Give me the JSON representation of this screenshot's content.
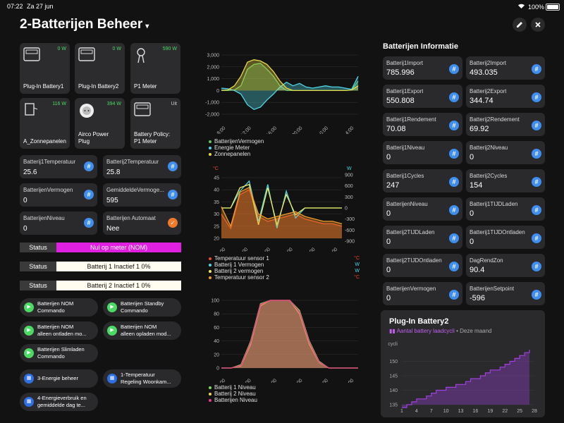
{
  "status_bar": {
    "time": "07:22",
    "date": "Za 27 jun",
    "battery_pct": "100%"
  },
  "header": {
    "title": "2-Batterijen Beheer",
    "caret": "▾",
    "edit_icon": "pencil-icon",
    "close_icon": "close-icon"
  },
  "tiles": [
    {
      "label": "Plug-In Battery1",
      "power": "0 W",
      "icon": "battery-device-icon"
    },
    {
      "label": "Plug-In Battery2",
      "power": "0 W",
      "icon": "battery-device-icon"
    },
    {
      "label": "P1 Meter",
      "power": "590 W",
      "icon": "meter-icon"
    },
    {
      "label": "A_Zonnepanelen",
      "power": "116 W",
      "icon": "solar-panel-icon"
    },
    {
      "label": "Airco Power\nPlug",
      "power": "394 W",
      "icon": "plug-icon"
    },
    {
      "label": "Battery Policy:\nP1 Meter",
      "power": "Uit",
      "icon": "battery-device-icon"
    }
  ],
  "left_cards": [
    {
      "key": "Batterij1Temperatuur",
      "value": "25.6"
    },
    {
      "key": "Batterij2Temperatuur",
      "value": "25.8"
    },
    {
      "key": "BatterijenVermogen",
      "value": "0"
    },
    {
      "key": "GemiddeldeVermoge...",
      "value": "595"
    },
    {
      "key": "BatterijenNiveau",
      "value": "0"
    },
    {
      "key": "Batterijen Automaat",
      "value": "Nee"
    }
  ],
  "status_rows": [
    {
      "label": "Status",
      "value": "Nul op meter (NOM)",
      "color": "#e020e0"
    },
    {
      "label": "Status",
      "value": "Batterij 1 Inactief 1 0%",
      "color": "#fffdf0"
    },
    {
      "label": "Status",
      "value": "Batterij 2 Inactief 1 0%",
      "color": "#fffdf0"
    }
  ],
  "commands": [
    {
      "text": "Batterijen NOM\nCommando"
    },
    {
      "text": "Batterijen Standby\nCommando"
    },
    {
      "text": "Batterijen NOM\nalleen ontladen mo..."
    },
    {
      "text": "Batterijen NOM\nalleen opladen mod..."
    },
    {
      "text": "Batterijen Slimladen\nCommando"
    }
  ],
  "nav_buttons": [
    {
      "text": "3-Energie beheer"
    },
    {
      "text": "1-Temperatuur\nRegeling Woonkam..."
    },
    {
      "text": "4-Energieverbruik en\ngemiddelde dag te..."
    }
  ],
  "right_section": {
    "title": "Batterijen Informatie",
    "cards": [
      {
        "key": "Batterij1Import",
        "value": "785.996"
      },
      {
        "key": "Batterij2Import",
        "value": "493.035"
      },
      {
        "key": "Batterij1Export",
        "value": "550.808"
      },
      {
        "key": "Batterij2Export",
        "value": "344.74"
      },
      {
        "key": "Batterij1Rendement",
        "value": "70.08"
      },
      {
        "key": "Batterij2Rendement",
        "value": "69.92"
      },
      {
        "key": "Batterij1Niveau",
        "value": "0"
      },
      {
        "key": "Batterij2Niveau",
        "value": "0"
      },
      {
        "key": "Batterij1Cycles",
        "value": "247"
      },
      {
        "key": "Batterij2Cycles",
        "value": "154"
      },
      {
        "key": "BatterijenNiveau",
        "value": "0"
      },
      {
        "key": "Batterij1TIJDLaden",
        "value": "0"
      },
      {
        "key": "Batterij2TIJDLaden",
        "value": "0"
      },
      {
        "key": "Batterij1TIJDOntladen",
        "value": "0"
      },
      {
        "key": "Batterij2TIJDOntladen",
        "value": "0"
      },
      {
        "key": "DagRendZon",
        "value": "90.4"
      },
      {
        "key": "BatterijenVermogen",
        "value": "0"
      },
      {
        "key": "BatterijenSetpoint",
        "value": "-596"
      }
    ]
  },
  "chart_data": [
    {
      "type": "area",
      "x_ticks": [
        "8:00",
        "12:00",
        "16:00",
        "20:00",
        "0:00",
        "4:00"
      ],
      "ylim": [
        -2000,
        3000
      ],
      "y_ticks": [
        "3,000",
        "2,000",
        "1,000",
        "0",
        "-1,000",
        "-2,000"
      ],
      "series": [
        {
          "name": "BatterijenVermogen",
          "color": "#5fc85f",
          "values": [
            0,
            0,
            50,
            400,
            1800,
            2200,
            2300,
            1800,
            1200,
            400,
            0,
            0,
            0,
            0,
            0,
            0,
            0,
            0,
            0,
            0,
            50,
            800
          ]
        },
        {
          "name": "Energie Meter",
          "color": "#4fd6e6",
          "values": [
            200,
            150,
            0,
            -300,
            -1200,
            -1600,
            -1400,
            -800,
            -300,
            300,
            700,
            400,
            600,
            300,
            200,
            300,
            400,
            300,
            300,
            200,
            100,
            1200
          ]
        },
        {
          "name": "Zonnepanelen",
          "color": "#e8d84a",
          "values": [
            0,
            50,
            400,
            1200,
            2400,
            2600,
            2500,
            2200,
            1600,
            800,
            200,
            0,
            0,
            0,
            0,
            0,
            0,
            0,
            0,
            0,
            50,
            400
          ]
        }
      ]
    },
    {
      "type": "line",
      "x_ticks": [
        "8:00",
        "12:00",
        "16:00",
        "20:00",
        "0:00",
        "4:00"
      ],
      "ylim_left": [
        20,
        45
      ],
      "y_ticks_left": [
        "45",
        "40",
        "35",
        "30",
        "25",
        "20"
      ],
      "ylim_right": [
        -900,
        900
      ],
      "y_ticks_right": [
        "900",
        "600",
        "300",
        "0",
        "-300",
        "-600",
        "-900"
      ],
      "left_unit": "°C",
      "right_unit": "W",
      "series": [
        {
          "name": "Temperatuur sensor 1",
          "unit": "°C",
          "color": "#e84a2a",
          "values": [
            30,
            24,
            38,
            40,
            29,
            27,
            28,
            29,
            30,
            28,
            27,
            26,
            26,
            25
          ]
        },
        {
          "name": "Batterij 1 Vermogen",
          "unit": "W",
          "color": "#4fd6e6",
          "values": [
            0,
            0,
            500,
            800,
            -400,
            700,
            -600,
            500,
            -300,
            0,
            0,
            0,
            0,
            0
          ]
        },
        {
          "name": "Batterij 2 vermogen",
          "unit": "W",
          "color": "#f2ec5a",
          "values": [
            0,
            0,
            600,
            700,
            -500,
            600,
            -500,
            400,
            -200,
            0,
            0,
            0,
            0,
            0
          ]
        },
        {
          "name": "Temperatuur sensor 2",
          "unit": "°C",
          "color": "#ef9a2a",
          "values": [
            33,
            25,
            39,
            41,
            30,
            28,
            29,
            30,
            31,
            29,
            28,
            27,
            27,
            26
          ]
        }
      ]
    },
    {
      "type": "area",
      "x_ticks": [
        "8:00",
        "12:00",
        "16:00",
        "20:00",
        "0:00",
        "4:00"
      ],
      "ylim": [
        0,
        100
      ],
      "y_ticks": [
        "100",
        "80",
        "60",
        "40",
        "20",
        "0"
      ],
      "series": [
        {
          "name": "Batterij 1 Niveau",
          "color": "#7ed957",
          "values": [
            0,
            0,
            5,
            40,
            95,
            100,
            100,
            100,
            85,
            40,
            10,
            0,
            0,
            0,
            0
          ]
        },
        {
          "name": "Batterij 2 Niveau",
          "color": "#e8d84a",
          "values": [
            0,
            0,
            3,
            35,
            92,
            100,
            100,
            100,
            80,
            35,
            8,
            0,
            0,
            0,
            0
          ]
        },
        {
          "name": "Batterijen Niveau",
          "color": "#e83a8a",
          "values": [
            0,
            0,
            4,
            38,
            94,
            100,
            100,
            100,
            83,
            38,
            9,
            0,
            0,
            0,
            0
          ]
        }
      ]
    },
    {
      "type": "area",
      "title": "Plug-In Battery2",
      "legend": "Aantal battery laadcycli",
      "period": "Deze maand",
      "ylabel": "cycli",
      "ylim": [
        135,
        155
      ],
      "y_ticks": [
        "150",
        "145",
        "140",
        "135"
      ],
      "x_ticks": [
        "1",
        "4",
        "7",
        "10",
        "13",
        "16",
        "19",
        "22",
        "25",
        "28"
      ],
      "x": [
        1,
        2,
        3,
        4,
        5,
        6,
        7,
        8,
        9,
        10,
        11,
        12,
        13,
        14,
        15,
        16,
        17,
        18,
        19,
        20,
        21,
        22,
        23,
        24,
        25,
        26,
        27
      ],
      "values": [
        134,
        135,
        136,
        137,
        137,
        138,
        139,
        140,
        140,
        141,
        141,
        142,
        142,
        143,
        144,
        144,
        145,
        146,
        147,
        147,
        148,
        149,
        150,
        151,
        152,
        153,
        154
      ],
      "color": "#a040e0"
    }
  ]
}
